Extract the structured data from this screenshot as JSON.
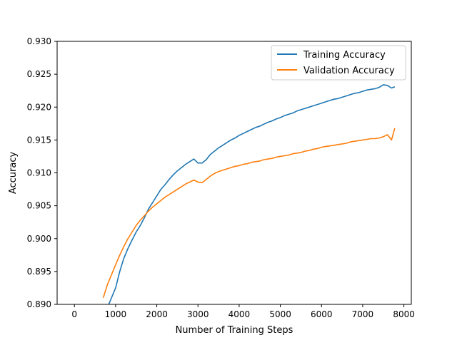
{
  "chart_data": {
    "type": "line",
    "title": "",
    "xlabel": "Number of Training Steps",
    "ylabel": "Accuracy",
    "xlim": [
      -420,
      8180
    ],
    "ylim": [
      0.89,
      0.93
    ],
    "xticks": [
      0,
      1000,
      2000,
      3000,
      4000,
      5000,
      6000,
      7000,
      8000
    ],
    "xtick_labels": [
      "0",
      "1000",
      "2000",
      "3000",
      "4000",
      "5000",
      "6000",
      "7000",
      "8000"
    ],
    "yticks": [
      0.89,
      0.895,
      0.9,
      0.905,
      0.91,
      0.915,
      0.92,
      0.925,
      0.93
    ],
    "ytick_labels": [
      "0.890",
      "0.895",
      "0.900",
      "0.905",
      "0.910",
      "0.915",
      "0.920",
      "0.925",
      "0.930"
    ],
    "grid": false,
    "legend_position": "top-right",
    "series": [
      {
        "name": "Training Accuracy",
        "color": "#1f77b4",
        "x": [
          700,
          800,
          900,
          1000,
          1100,
          1200,
          1300,
          1400,
          1500,
          1600,
          1700,
          1800,
          1900,
          2000,
          2100,
          2200,
          2300,
          2400,
          2500,
          2600,
          2700,
          2800,
          2900,
          3000,
          3100,
          3200,
          3300,
          3400,
          3500,
          3600,
          3700,
          3800,
          3900,
          4000,
          4100,
          4200,
          4300,
          4400,
          4500,
          4600,
          4700,
          4800,
          4900,
          5000,
          5100,
          5200,
          5300,
          5400,
          5500,
          5600,
          5700,
          5800,
          5900,
          6000,
          6100,
          6200,
          6300,
          6400,
          6500,
          6600,
          6700,
          6800,
          6900,
          7000,
          7100,
          7200,
          7300,
          7400,
          7500,
          7600,
          7700,
          7780
        ],
        "y": [
          0.888,
          0.8895,
          0.891,
          0.8925,
          0.895,
          0.897,
          0.8985,
          0.8998,
          0.901,
          0.902,
          0.9032,
          0.9045,
          0.9055,
          0.9065,
          0.9075,
          0.9082,
          0.909,
          0.9097,
          0.9103,
          0.9108,
          0.9113,
          0.9117,
          0.9121,
          0.9115,
          0.9115,
          0.912,
          0.9128,
          0.9133,
          0.9138,
          0.9142,
          0.9146,
          0.915,
          0.9153,
          0.9157,
          0.916,
          0.9163,
          0.9166,
          0.9169,
          0.9171,
          0.9174,
          0.9177,
          0.9179,
          0.9182,
          0.9184,
          0.9187,
          0.9189,
          0.9191,
          0.9194,
          0.9196,
          0.9198,
          0.92,
          0.9202,
          0.9204,
          0.9206,
          0.9208,
          0.921,
          0.9212,
          0.9213,
          0.9215,
          0.9217,
          0.9219,
          0.9221,
          0.9222,
          0.9224,
          0.9226,
          0.9227,
          0.9228,
          0.923,
          0.9234,
          0.9233,
          0.9229,
          0.9231
        ]
      },
      {
        "name": "Validation Accuracy",
        "color": "#ff7f0e",
        "x": [
          700,
          800,
          900,
          1000,
          1100,
          1200,
          1300,
          1400,
          1500,
          1600,
          1700,
          1800,
          1900,
          2000,
          2100,
          2200,
          2300,
          2400,
          2500,
          2600,
          2700,
          2800,
          2900,
          3000,
          3100,
          3200,
          3300,
          3400,
          3500,
          3600,
          3700,
          3800,
          3900,
          4000,
          4100,
          4200,
          4300,
          4400,
          4500,
          4600,
          4700,
          4800,
          4900,
          5000,
          5100,
          5200,
          5300,
          5400,
          5500,
          5600,
          5700,
          5800,
          5900,
          6000,
          6100,
          6200,
          6300,
          6400,
          6500,
          6600,
          6700,
          6800,
          6900,
          7000,
          7100,
          7200,
          7300,
          7400,
          7500,
          7600,
          7700,
          7780
        ],
        "y": [
          0.891,
          0.893,
          0.8945,
          0.896,
          0.8975,
          0.8988,
          0.9,
          0.901,
          0.902,
          0.9028,
          0.9035,
          0.9042,
          0.9048,
          0.9053,
          0.9058,
          0.9063,
          0.9067,
          0.9071,
          0.9075,
          0.9079,
          0.9083,
          0.9086,
          0.9089,
          0.9086,
          0.9085,
          0.909,
          0.9095,
          0.9099,
          0.9102,
          0.9104,
          0.9106,
          0.9108,
          0.911,
          0.9111,
          0.9113,
          0.9114,
          0.9116,
          0.9117,
          0.9118,
          0.912,
          0.9121,
          0.9122,
          0.9124,
          0.9125,
          0.9126,
          0.9127,
          0.9129,
          0.913,
          0.9131,
          0.9133,
          0.9134,
          0.9136,
          0.9137,
          0.9139,
          0.914,
          0.9141,
          0.9142,
          0.9143,
          0.9144,
          0.9145,
          0.9147,
          0.9148,
          0.9149,
          0.915,
          0.9151,
          0.9152,
          0.9152,
          0.9153,
          0.9155,
          0.9158,
          0.915,
          0.9168
        ]
      }
    ]
  }
}
